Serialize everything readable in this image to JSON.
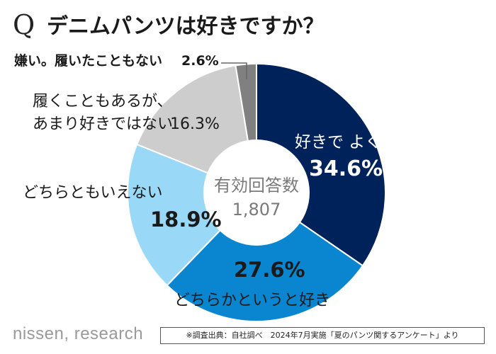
{
  "title": {
    "q_mark": "Q",
    "text": "デニムパンツは好きですか？"
  },
  "center": {
    "label": "有効回答数",
    "value": "1,807"
  },
  "colors": {
    "s0": "#00225a",
    "s1": "#0a85cf",
    "s2": "#99d8f6",
    "s3": "#cdcdcd",
    "s4": "#808080",
    "leader": "#666666"
  },
  "chart_data": {
    "type": "pie",
    "donut": true,
    "title": "デニムパンツは好きですか？",
    "total_label": "有効回答数",
    "total": 1807,
    "slices": [
      {
        "label": "好きでよく履いている",
        "label_lines": [
          "好きで よく履いている"
        ],
        "value": 34.6,
        "value_text": "34.6%"
      },
      {
        "label": "どちらかというと好き",
        "label_lines": [
          "どちらかというと好き"
        ],
        "value": 27.6,
        "value_text": "27.6%"
      },
      {
        "label": "どちらともいえない",
        "label_lines": [
          "どちらともいえない"
        ],
        "value": 18.9,
        "value_text": "18.9%"
      },
      {
        "label": "履くこともあるが、あまり好きではない",
        "label_lines": [
          "履くこともあるが、",
          "あまり好きではない"
        ],
        "value": 16.3,
        "value_text": "16.3%"
      },
      {
        "label": "嫌い。履いたこともない",
        "label_lines": [
          "嫌い。履いたこともない"
        ],
        "value": 2.6,
        "value_text": "2.6%"
      }
    ]
  },
  "footer": {
    "brand": "nissen, research",
    "source": "※調査出典：自社調べ　2024年7月実施「夏のパンツ関するアンケート」より"
  }
}
